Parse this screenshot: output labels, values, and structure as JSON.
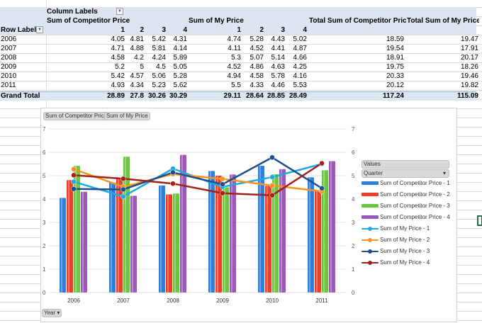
{
  "pivot": {
    "column_labels": "Column Labels",
    "row_labels": "Row Labels",
    "grand_total_label": "Grand Total",
    "group1": "Sum of Competitor Price",
    "group2": "Sum of My Price",
    "total1": "Total Sum of Competitor Price",
    "total2": "Total Sum of My Price",
    "quarters": [
      "1",
      "2",
      "3",
      "4"
    ],
    "rows": [
      {
        "year": "2006",
        "comp": [
          "4.05",
          "4.81",
          "5.42",
          "4.31"
        ],
        "my": [
          "4.74",
          "5.28",
          "4.43",
          "5.02"
        ],
        "tc": "18.59",
        "tm": "19.47"
      },
      {
        "year": "2007",
        "comp": [
          "4.71",
          "4.88",
          "5.81",
          "4.14"
        ],
        "my": [
          "4.11",
          "4.52",
          "4.41",
          "4.87"
        ],
        "tc": "19.54",
        "tm": "17.91"
      },
      {
        "year": "2008",
        "comp": [
          "4.58",
          "4.2",
          "4.24",
          "5.89"
        ],
        "my": [
          "5.3",
          "5.07",
          "5.14",
          "4.66"
        ],
        "tc": "18.91",
        "tm": "20.17"
      },
      {
        "year": "2009",
        "comp": [
          "5.2",
          "5",
          "4.5",
          "5.05"
        ],
        "my": [
          "4.52",
          "4.86",
          "4.63",
          "4.25"
        ],
        "tc": "19.75",
        "tm": "18.26"
      },
      {
        "year": "2010",
        "comp": [
          "5.42",
          "4.57",
          "5.06",
          "5.28"
        ],
        "my": [
          "4.94",
          "4.58",
          "5.78",
          "4.16"
        ],
        "tc": "20.33",
        "tm": "19.46"
      },
      {
        "year": "2011",
        "comp": [
          "4.93",
          "4.34",
          "5.23",
          "5.62"
        ],
        "my": [
          "5.5",
          "4.33",
          "4.46",
          "5.53"
        ],
        "tc": "20.12",
        "tm": "19.82"
      }
    ],
    "grand": {
      "comp": [
        "28.89",
        "27.8",
        "30.26",
        "30.29"
      ],
      "my": [
        "29.11",
        "28.64",
        "28.85",
        "28.49"
      ],
      "tc": "117.24",
      "tm": "115.09"
    }
  },
  "chart_buttons": {
    "values1": "Sum of Competitor Price",
    "values2": "Sum of My Price",
    "axis": "Year",
    "legend_values": "Values",
    "legend_field": "Quarter"
  },
  "chart_data": {
    "type": "bar",
    "categories": [
      "2006",
      "2007",
      "2008",
      "2009",
      "2010",
      "2011"
    ],
    "ylim": [
      0,
      7
    ],
    "yticks": [
      "0",
      "1",
      "2",
      "3",
      "4",
      "5",
      "6",
      "7"
    ],
    "legend_position": "right",
    "series": [
      {
        "name": "Sum of Competitor Price - 1",
        "kind": "bar",
        "color": "#2f7ed8",
        "values": [
          4.05,
          4.71,
          4.58,
          5.2,
          5.42,
          4.93
        ]
      },
      {
        "name": "Sum of Competitor Price - 2",
        "kind": "bar",
        "color": "#e8402b",
        "values": [
          4.81,
          4.88,
          4.2,
          5,
          4.57,
          4.34
        ]
      },
      {
        "name": "Sum of Competitor Price - 3",
        "kind": "bar",
        "color": "#6cc644",
        "values": [
          5.42,
          5.81,
          4.24,
          4.5,
          5.06,
          5.23
        ]
      },
      {
        "name": "Sum of Competitor Price - 4",
        "kind": "bar",
        "color": "#9b59b6",
        "values": [
          4.31,
          4.14,
          5.89,
          5.05,
          5.28,
          5.62
        ]
      },
      {
        "name": "Sum of My Price - 1",
        "kind": "line",
        "color": "#1fa9e1",
        "values": [
          4.74,
          4.11,
          5.3,
          4.52,
          4.94,
          5.5
        ]
      },
      {
        "name": "Sum of My Price - 2",
        "kind": "line",
        "color": "#f7931e",
        "values": [
          5.28,
          4.52,
          5.07,
          4.86,
          4.58,
          4.33
        ]
      },
      {
        "name": "Sum of My Price - 3",
        "kind": "line",
        "color": "#1f4e8c",
        "values": [
          4.43,
          4.41,
          5.14,
          4.63,
          5.78,
          4.46
        ]
      },
      {
        "name": "Sum of My Price - 4",
        "kind": "line",
        "color": "#a0221a",
        "values": [
          5.02,
          4.87,
          4.66,
          4.25,
          4.16,
          5.53
        ]
      }
    ]
  }
}
